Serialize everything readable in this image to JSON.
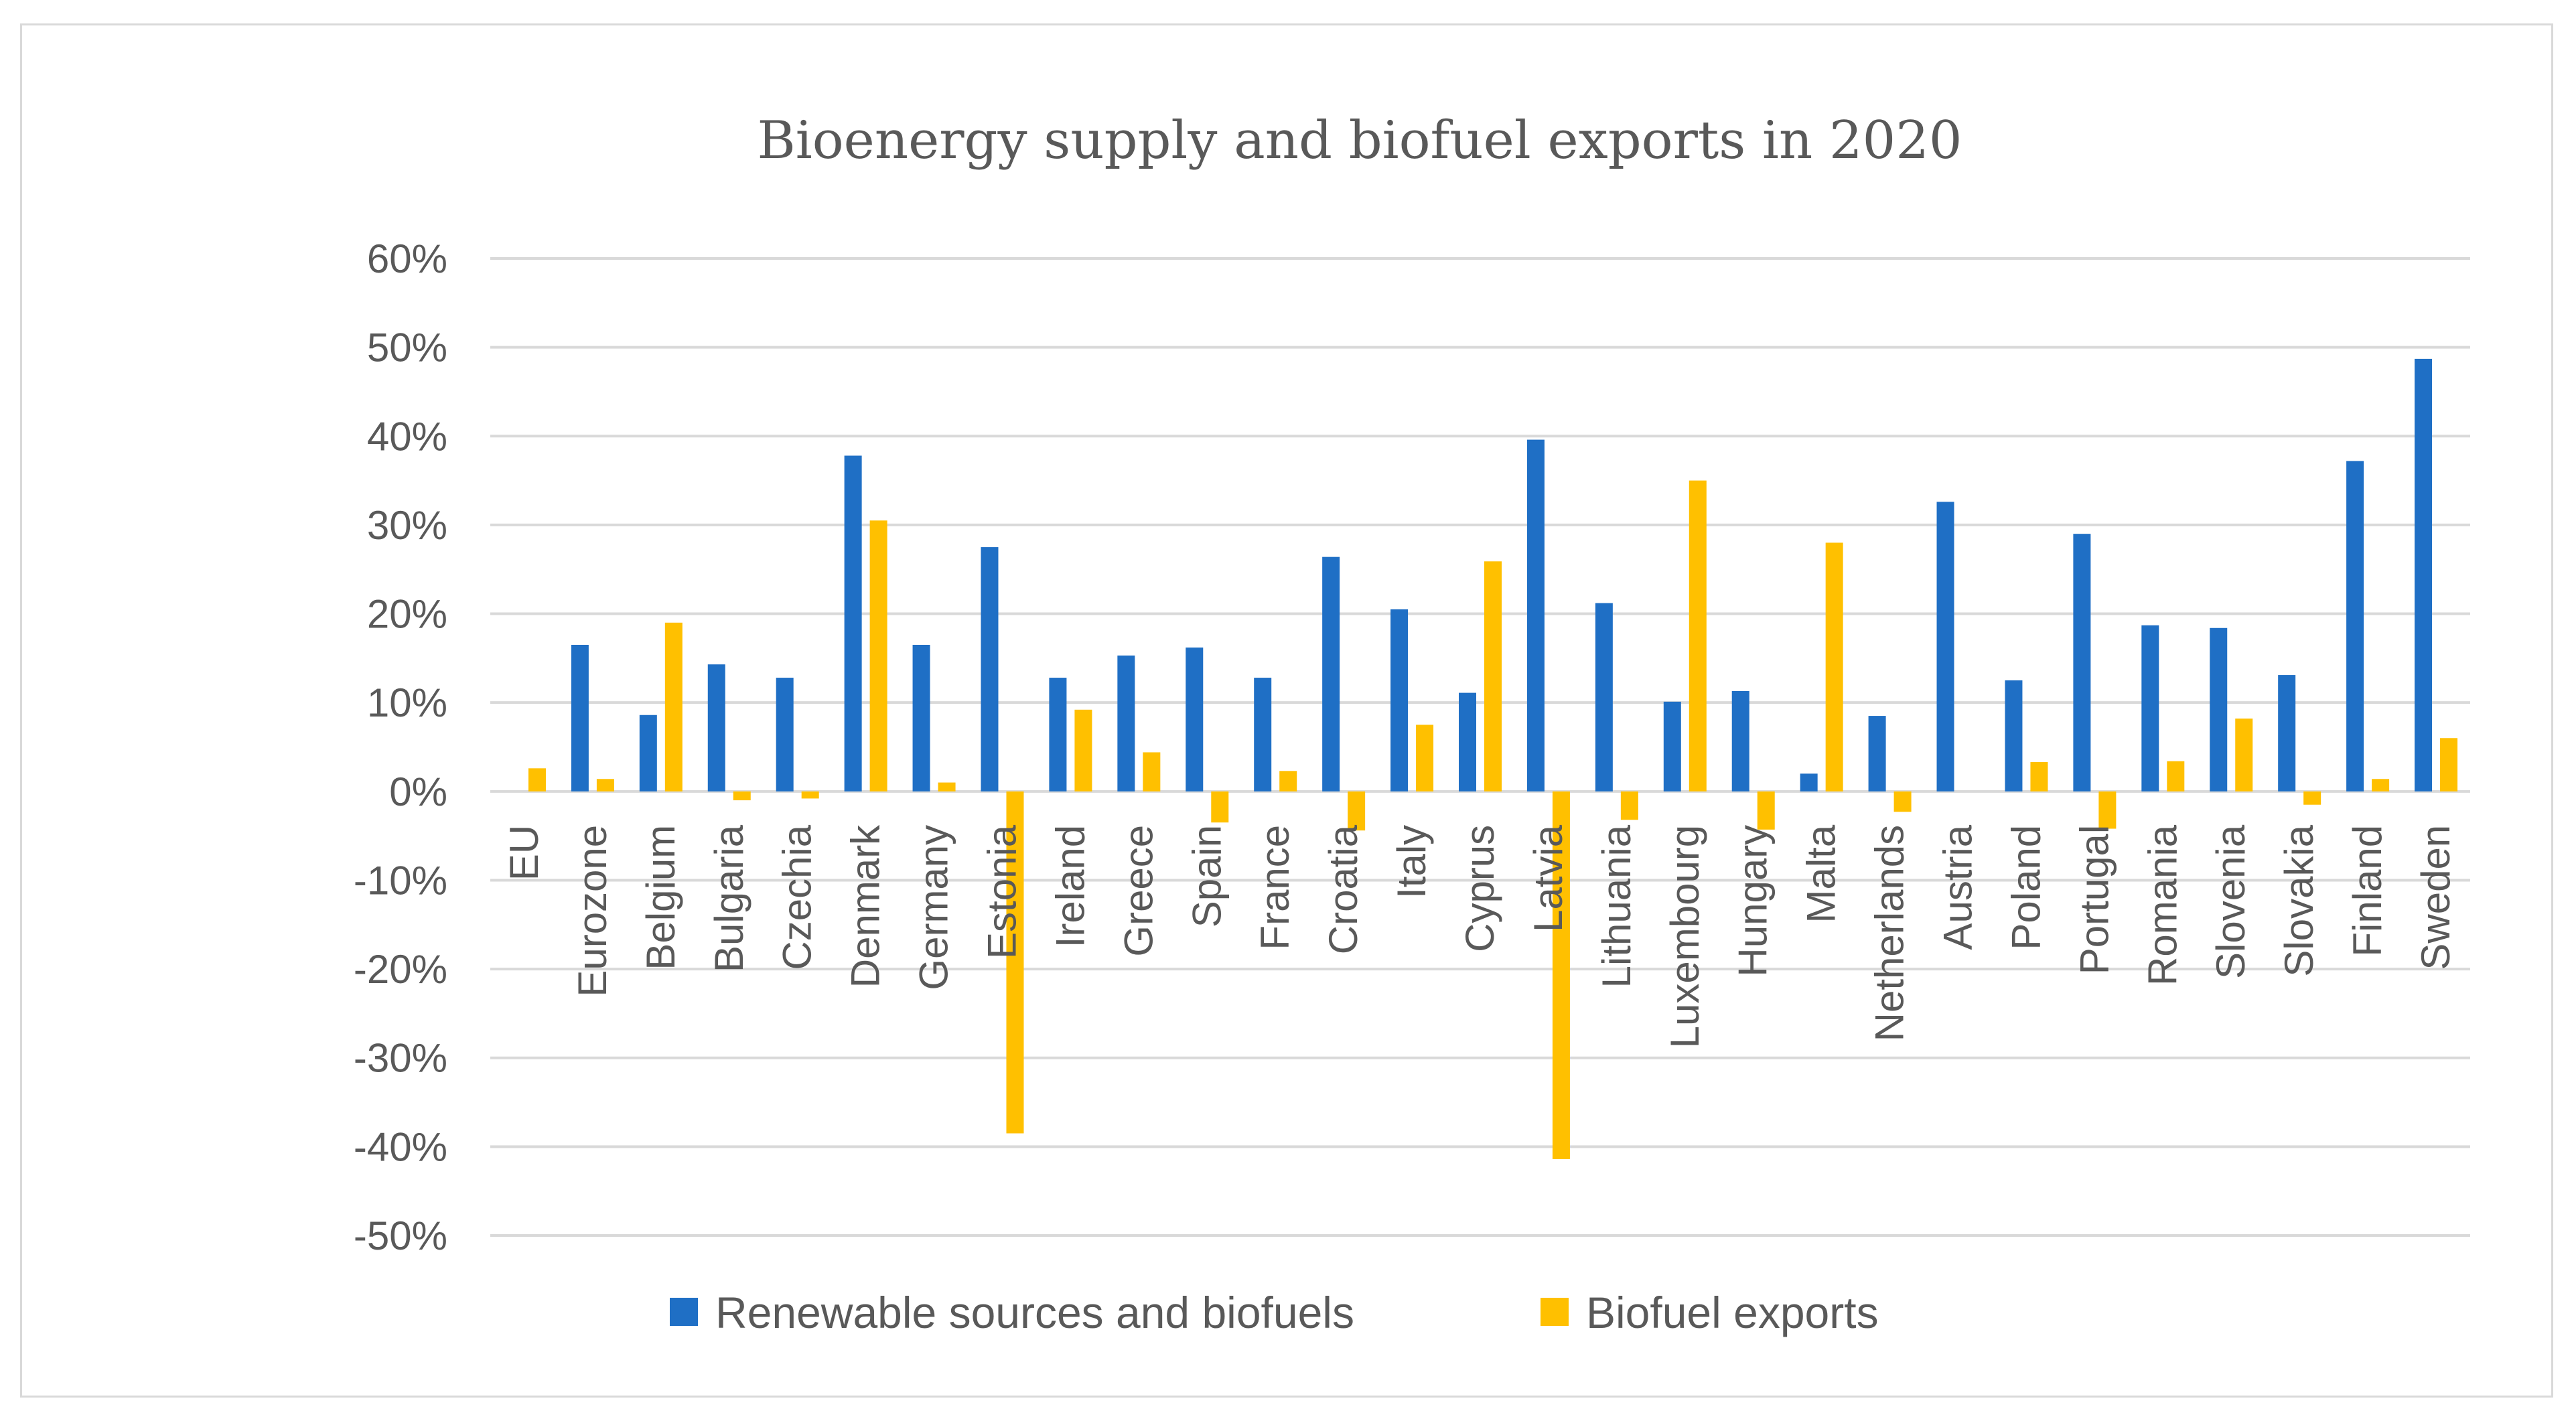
{
  "chart_data": {
    "type": "bar",
    "title": "Bioenergy supply and biofuel exports in 2020",
    "xlabel": "",
    "ylabel": "",
    "ylim": [
      -0.5,
      0.6
    ],
    "yticks": [
      0.6,
      0.5,
      0.4,
      0.3,
      0.2,
      0.1,
      0.0,
      -0.1,
      -0.2,
      -0.3,
      -0.4,
      -0.5
    ],
    "ytick_labels": [
      "60%",
      "50%",
      "40%",
      "30%",
      "20%",
      "10%",
      "0%",
      "-10%",
      "-20%",
      "-30%",
      "-40%",
      "-50%"
    ],
    "grid": true,
    "legend_position": "bottom",
    "categories": [
      "EU",
      "Eurozone",
      "Belgium",
      "Bulgaria",
      "Czechia",
      "Denmark",
      "Germany",
      "Estonia",
      "Ireland",
      "Greece",
      "Spain",
      "France",
      "Croatia",
      "Italy",
      "Cyprus",
      "Latvia",
      "Lithuania",
      "Luxembourg",
      "Hungary",
      "Malta",
      "Netherlands",
      "Austria",
      "Poland",
      "Portugal",
      "Romania",
      "Slovenia",
      "Slovakia",
      "Finland",
      "Sweden"
    ],
    "series": [
      {
        "name": "Renewable sources and biofuels",
        "color": "#1f6fc5",
        "values": [
          0.0,
          0.165,
          0.086,
          0.143,
          0.128,
          0.378,
          0.165,
          0.275,
          0.128,
          0.153,
          0.162,
          0.128,
          0.264,
          0.205,
          0.111,
          0.396,
          0.212,
          0.101,
          0.113,
          0.02,
          0.085,
          0.326,
          0.125,
          0.29,
          0.187,
          0.184,
          0.131,
          0.372,
          0.487
        ]
      },
      {
        "name": "Biofuel exports",
        "color": "#ffc000",
        "values": [
          0.026,
          0.014,
          0.19,
          -0.01,
          -0.008,
          0.305,
          0.01,
          -0.385,
          0.092,
          0.044,
          -0.035,
          0.023,
          -0.044,
          0.075,
          0.259,
          -0.414,
          -0.032,
          0.35,
          -0.043,
          0.28,
          -0.023,
          0.0,
          0.033,
          -0.042,
          0.034,
          0.082,
          -0.015,
          0.014,
          0.06
        ]
      }
    ]
  }
}
